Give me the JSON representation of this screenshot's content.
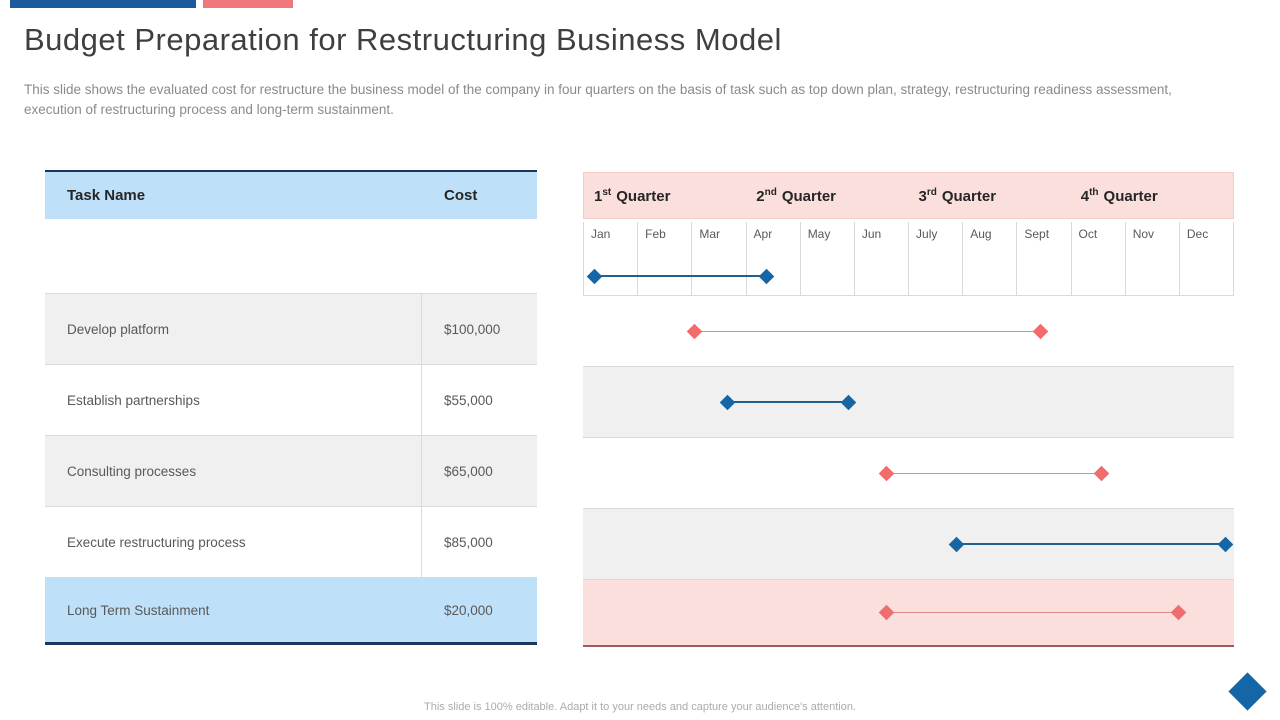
{
  "header": {
    "title": "Budget Preparation for Restructuring Business Model",
    "subtitle": "This slide shows the evaluated cost for restructure the business model of the company in four quarters on the basis of task such as top down plan, strategy, restructuring readiness assessment, execution of restructuring process and long-term sustainment."
  },
  "table": {
    "columns": {
      "task": "Task Name",
      "cost": "Cost"
    },
    "rows": [
      {
        "task": "Develop platform",
        "cost": "$100,000"
      },
      {
        "task": "Establish partnerships",
        "cost": "$55,000"
      },
      {
        "task": "Consulting processes",
        "cost": "$65,000"
      },
      {
        "task": "Execute restructuring process",
        "cost": "$85,000"
      },
      {
        "task": "Long Term Sustainment",
        "cost": "$20,000"
      }
    ]
  },
  "gantt": {
    "quarters": [
      {
        "ordinal": "1",
        "suffix": "st",
        "word": "Quarter"
      },
      {
        "ordinal": "2",
        "suffix": "nd",
        "word": "Quarter"
      },
      {
        "ordinal": "3",
        "suffix": "rd",
        "word": "Quarter"
      },
      {
        "ordinal": "4",
        "suffix": "th",
        "word": "Quarter"
      }
    ],
    "months": [
      "Jan",
      "Feb",
      "Mar",
      "Apr",
      "May",
      "Jun",
      "July",
      "Aug",
      "Sept",
      "Oct",
      "Nov",
      "Dec"
    ],
    "bars": [
      {
        "row": "timeline-top",
        "color": "blue",
        "start_month": 0.18,
        "end_month": 3.38
      },
      {
        "row": "develop-platform",
        "color": "red",
        "start_month": 2.05,
        "end_month": 8.45
      },
      {
        "row": "establish-partnerships",
        "color": "blue",
        "start_month": 2.65,
        "end_month": 4.9
      },
      {
        "row": "consulting-processes",
        "color": "red",
        "start_month": 5.58,
        "end_month": 9.56
      },
      {
        "row": "execute-restructuring",
        "color": "blue",
        "start_month": 6.88,
        "end_month": 11.86
      },
      {
        "row": "long-term-sustainment",
        "color": "red",
        "start_month": 5.58,
        "end_month": 10.98
      }
    ]
  },
  "chart_data": {
    "type": "gantt",
    "title": "Budget Preparation for Restructuring Business Model",
    "x_axis_months": [
      "Jan",
      "Feb",
      "Mar",
      "Apr",
      "May",
      "Jun",
      "July",
      "Aug",
      "Sept",
      "Oct",
      "Nov",
      "Dec"
    ],
    "x_axis_quarters": [
      "1st Quarter",
      "2nd Quarter",
      "3rd Quarter",
      "4th Quarter"
    ],
    "tasks": [
      {
        "name": "",
        "series": "blue",
        "start_month": 1.2,
        "end_month": 4.4
      },
      {
        "name": "Develop platform",
        "cost_usd": 100000,
        "series": "red",
        "start_month": 3.1,
        "end_month": 9.5
      },
      {
        "name": "Establish partnerships",
        "cost_usd": 55000,
        "series": "blue",
        "start_month": 3.7,
        "end_month": 5.9
      },
      {
        "name": "Consulting processes",
        "cost_usd": 65000,
        "series": "red",
        "start_month": 6.6,
        "end_month": 10.6
      },
      {
        "name": "Execute restructuring process",
        "cost_usd": 85000,
        "series": "blue",
        "start_month": 7.9,
        "end_month": 12.9
      },
      {
        "name": "Long Term Sustainment",
        "cost_usd": 20000,
        "series": "red",
        "start_month": 6.6,
        "end_month": 12.0
      }
    ]
  },
  "footer": {
    "note": "This slide is 100% editable.  Adapt it to your needs and capture your audience's attention."
  },
  "colors": {
    "accent_blue": "#1B5A9B",
    "accent_pink": "#F0787D",
    "table_header_blue": "#BEE0F8",
    "quarter_header_pink": "#FBDFDC",
    "row_gray": "#F0F0F0",
    "border_dark_navy": "#17375E",
    "bar_blue": "#1566A7",
    "bar_blue_line": "#20618F",
    "bar_red": "#F16C6C",
    "bar_red_line": "#DE8B8B"
  }
}
